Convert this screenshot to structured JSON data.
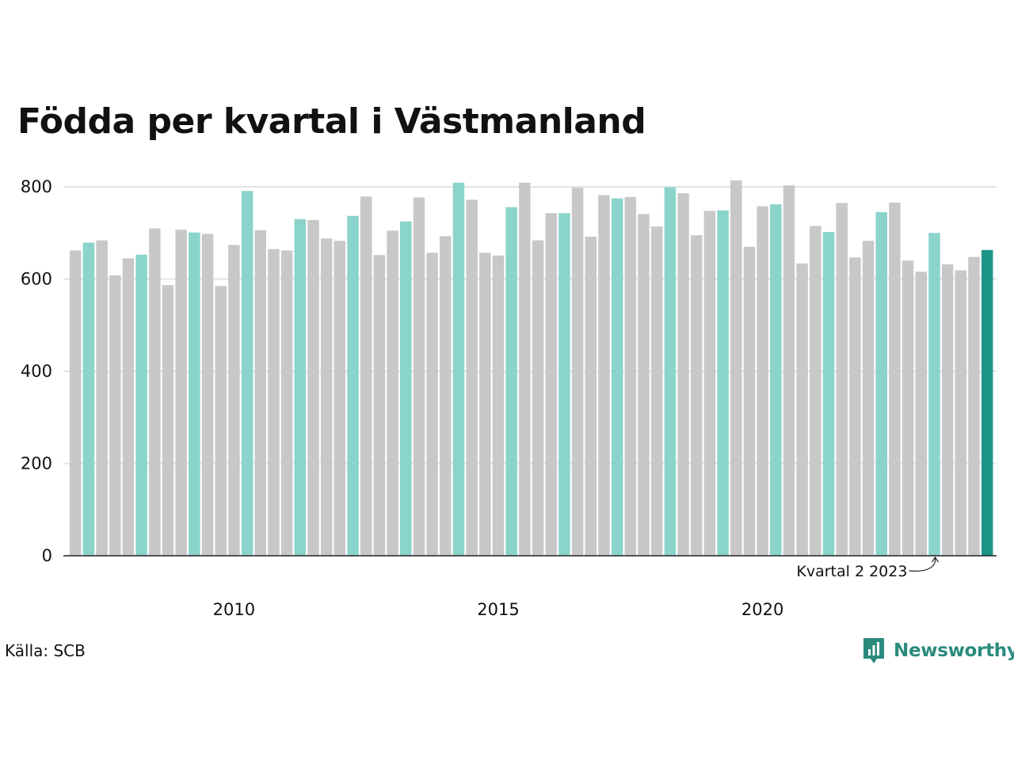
{
  "title": "Födda per kvartal i Västmanland",
  "source": "Källa: SCB",
  "brand": {
    "name": "Newsworthy",
    "icon": "chart-bubble-icon"
  },
  "colors": {
    "bar_default": "#c8c8c8",
    "bar_quarter2": "#8ad4cb",
    "bar_latest": "#1c9586",
    "axis": "#222222",
    "grid": "#e3e3e3",
    "brand": "#2a8b7d"
  },
  "annotation": {
    "text": "Kvartal 2 2023",
    "target_index": 65
  },
  "chart_data": {
    "type": "bar",
    "title": "Födda per kvartal i Västmanland",
    "ylim": [
      0,
      800
    ],
    "yticks": [
      0,
      200,
      400,
      600,
      800
    ],
    "xtick_labels": [
      {
        "label": "2010",
        "index": 12
      },
      {
        "label": "2015",
        "index": 32
      },
      {
        "label": "2020",
        "index": 52
      }
    ],
    "grid": true,
    "x": [
      "2007 K1",
      "2007 K2",
      "2007 K3",
      "2007 K4",
      "2008 K1",
      "2008 K2",
      "2008 K3",
      "2008 K4",
      "2009 K1",
      "2009 K2",
      "2009 K3",
      "2009 K4",
      "2010 K1",
      "2010 K2",
      "2010 K3",
      "2010 K4",
      "2011 K1",
      "2011 K2",
      "2011 K3",
      "2011 K4",
      "2012 K1",
      "2012 K2",
      "2012 K3",
      "2012 K4",
      "2013 K1",
      "2013 K2",
      "2013 K3",
      "2013 K4",
      "2014 K1",
      "2014 K2",
      "2014 K3",
      "2014 K4",
      "2015 K1",
      "2015 K2",
      "2015 K3",
      "2015 K4",
      "2016 K1",
      "2016 K2",
      "2016 K3",
      "2016 K4",
      "2017 K1",
      "2017 K2",
      "2017 K3",
      "2017 K4",
      "2018 K1",
      "2018 K2",
      "2018 K3",
      "2018 K4",
      "2019 K1",
      "2019 K2",
      "2019 K3",
      "2019 K4",
      "2020 K1",
      "2020 K2",
      "2020 K3",
      "2020 K4",
      "2021 K1",
      "2021 K2",
      "2021 K3",
      "2021 K4",
      "2022 K1",
      "2022 K2",
      "2022 K3",
      "2022 K4",
      "2023 K1",
      "2023 K2",
      "2023 K3",
      "2023 K4",
      "2024 K1",
      "2024 K2"
    ],
    "values": [
      662,
      679,
      684,
      608,
      645,
      653,
      710,
      587,
      707,
      701,
      698,
      585,
      674,
      791,
      706,
      665,
      662,
      730,
      728,
      688,
      683,
      737,
      779,
      652,
      705,
      725,
      777,
      657,
      693,
      809,
      772,
      657,
      651,
      756,
      809,
      684,
      743,
      743,
      798,
      692,
      782,
      775,
      778,
      741,
      714,
      799,
      786,
      695,
      748,
      749,
      814,
      670,
      758,
      762,
      803,
      634,
      715,
      702,
      765,
      647,
      683,
      745,
      766,
      640,
      616,
      700,
      632,
      619,
      648,
      663
    ],
    "highlight": [
      "default",
      "quarter2",
      "default",
      "default",
      "default",
      "quarter2",
      "default",
      "default",
      "default",
      "quarter2",
      "default",
      "default",
      "default",
      "quarter2",
      "default",
      "default",
      "default",
      "quarter2",
      "default",
      "default",
      "default",
      "quarter2",
      "default",
      "default",
      "default",
      "quarter2",
      "default",
      "default",
      "default",
      "quarter2",
      "default",
      "default",
      "default",
      "quarter2",
      "default",
      "default",
      "default",
      "quarter2",
      "default",
      "default",
      "default",
      "quarter2",
      "default",
      "default",
      "default",
      "quarter2",
      "default",
      "default",
      "default",
      "quarter2",
      "default",
      "default",
      "default",
      "quarter2",
      "default",
      "default",
      "default",
      "quarter2",
      "default",
      "default",
      "default",
      "quarter2",
      "default",
      "default",
      "default",
      "quarter2",
      "default",
      "default",
      "default",
      "latest"
    ]
  }
}
